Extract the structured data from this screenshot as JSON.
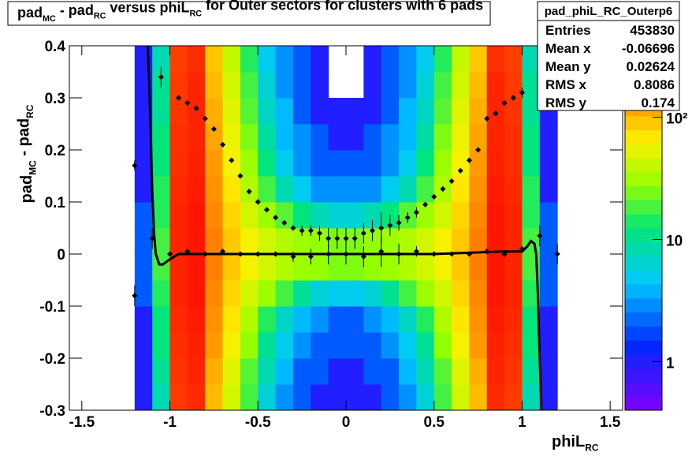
{
  "chart_data": {
    "type": "heatmap",
    "title": [
      "pad",
      "MC",
      " - pad",
      "RC",
      " versus phiL",
      "RC",
      " for Outer sectors for clusters with 6 pads"
    ],
    "xlabel": [
      "phiL",
      "RC"
    ],
    "ylabel": [
      "pad",
      "MC",
      " - pad",
      "RC"
    ],
    "xlim": [
      -1.5708,
      1.5708
    ],
    "ylim": [
      -0.3,
      0.4
    ],
    "xticks": [
      -1.5,
      -1,
      -0.5,
      0,
      0.5,
      1,
      1.5
    ],
    "yticks": [
      -0.3,
      -0.2,
      -0.1,
      0,
      0.1,
      0.2,
      0.3,
      0.4
    ],
    "zlim": [
      0.4,
      385
    ],
    "zticks": [
      1,
      10,
      {
        "value": 100,
        "label": "10²"
      }
    ],
    "log_z": true,
    "xbins": [
      -1.2,
      -1.1,
      -1.0,
      -0.9,
      -0.8,
      -0.7,
      -0.6,
      -0.5,
      -0.4,
      -0.3,
      -0.2,
      -0.1,
      0,
      0.1,
      0.2,
      0.3,
      0.4,
      0.5,
      0.6,
      0.7,
      0.8,
      0.9,
      1.0,
      1.1,
      1.2
    ],
    "ybins": [
      -0.3,
      -0.25,
      -0.2,
      -0.15,
      -0.1,
      -0.05,
      0,
      0.05,
      0.1,
      0.15,
      0.2,
      0.25,
      0.3,
      0.35,
      0.4
    ],
    "z": [
      [
        1,
        8,
        260,
        290,
        100,
        45,
        18,
        6,
        3,
        2,
        1,
        1,
        1,
        1,
        2,
        3,
        6,
        18,
        45,
        100,
        290,
        260,
        8,
        1
      ],
      [
        1,
        10,
        270,
        300,
        110,
        50,
        20,
        8,
        4,
        2,
        2,
        1,
        1,
        2,
        2,
        4,
        8,
        20,
        50,
        110,
        300,
        270,
        10,
        1
      ],
      [
        1,
        12,
        280,
        310,
        130,
        60,
        28,
        10,
        5,
        3,
        2,
        2,
        2,
        2,
        3,
        5,
        10,
        28,
        60,
        130,
        310,
        280,
        12,
        1
      ],
      [
        1,
        12,
        290,
        320,
        140,
        70,
        35,
        15,
        7,
        4,
        3,
        2,
        2,
        3,
        4,
        7,
        15,
        35,
        70,
        140,
        320,
        290,
        12,
        1
      ],
      [
        2,
        15,
        300,
        330,
        150,
        80,
        45,
        30,
        18,
        10,
        6,
        5,
        5,
        6,
        10,
        18,
        30,
        45,
        80,
        150,
        330,
        300,
        15,
        2
      ],
      [
        2,
        18,
        300,
        330,
        160,
        90,
        60,
        45,
        35,
        30,
        28,
        25,
        25,
        28,
        30,
        35,
        45,
        60,
        90,
        160,
        330,
        300,
        18,
        2
      ],
      [
        2,
        18,
        300,
        330,
        160,
        90,
        60,
        45,
        35,
        30,
        28,
        25,
        25,
        28,
        30,
        35,
        45,
        60,
        90,
        160,
        330,
        300,
        18,
        2
      ],
      [
        2,
        15,
        300,
        330,
        150,
        80,
        45,
        30,
        20,
        12,
        8,
        6,
        6,
        8,
        12,
        20,
        30,
        45,
        80,
        150,
        330,
        300,
        15,
        2
      ],
      [
        1,
        15,
        290,
        320,
        140,
        70,
        35,
        18,
        8,
        5,
        3,
        3,
        3,
        3,
        5,
        8,
        18,
        35,
        70,
        140,
        320,
        290,
        15,
        1
      ],
      [
        1,
        12,
        280,
        310,
        130,
        60,
        30,
        12,
        5,
        3,
        2,
        2,
        2,
        2,
        3,
        5,
        12,
        30,
        60,
        130,
        310,
        280,
        12,
        1
      ],
      [
        1,
        12,
        280,
        300,
        120,
        55,
        25,
        9,
        4,
        3,
        2,
        1,
        1,
        2,
        3,
        4,
        9,
        25,
        55,
        120,
        300,
        280,
        12,
        1
      ],
      [
        1,
        10,
        270,
        300,
        110,
        50,
        20,
        7,
        4,
        2,
        1,
        1,
        1,
        1,
        2,
        4,
        7,
        20,
        50,
        110,
        300,
        270,
        10,
        1
      ],
      [
        1,
        10,
        260,
        300,
        100,
        45,
        18,
        6,
        3,
        2,
        1,
        0,
        0,
        1,
        2,
        3,
        6,
        18,
        45,
        100,
        300,
        260,
        10,
        1
      ],
      [
        1,
        8,
        250,
        280,
        90,
        40,
        15,
        5,
        3,
        2,
        1,
        0,
        0,
        1,
        2,
        3,
        5,
        15,
        40,
        90,
        280,
        250,
        8,
        1
      ]
    ],
    "series": [
      {
        "kind": "points",
        "color": "#000000",
        "x": [
          -1.2,
          -1.05,
          -0.95,
          -0.9,
          -0.85,
          -0.8,
          -0.75,
          -0.7,
          -0.65,
          -0.6,
          -0.55,
          -0.5,
          -0.45,
          -0.4,
          -0.35,
          -0.3,
          -0.25,
          -0.2,
          -0.15,
          -0.1,
          -0.05,
          0,
          0.05,
          0.1,
          0.15,
          0.2,
          0.25,
          0.3,
          0.35,
          0.4,
          0.45,
          0.5,
          0.55,
          0.6,
          0.65,
          0.7,
          0.75,
          0.8,
          0.85,
          0.9,
          0.95,
          1.0
        ],
        "values": [
          0.17,
          0.34,
          0.3,
          0.29,
          0.28,
          0.26,
          0.24,
          0.21,
          0.18,
          0.15,
          0.12,
          0.1,
          0.085,
          0.07,
          0.06,
          0.05,
          0.045,
          0.045,
          0.04,
          0.03,
          0.03,
          0.03,
          0.03,
          0.04,
          0.045,
          0.05,
          0.055,
          0.06,
          0.07,
          0.08,
          0.095,
          0.11,
          0.125,
          0.14,
          0.16,
          0.18,
          0.2,
          0.26,
          0.27,
          0.29,
          0.3,
          0.31
        ],
        "errors": [
          0.01,
          0.02,
          0.005,
          0.005,
          0.005,
          0.005,
          0.005,
          0.005,
          0.005,
          0.005,
          0.005,
          0.005,
          0.005,
          0.005,
          0.005,
          0.005,
          0.01,
          0.01,
          0.015,
          0.02,
          0.02,
          0.02,
          0.02,
          0.02,
          0.02,
          0.03,
          0.02,
          0.015,
          0.01,
          0.01,
          0.005,
          0.005,
          0.005,
          0.005,
          0.005,
          0.005,
          0.005,
          0.005,
          0.005,
          0.005,
          0.005,
          0.01
        ]
      },
      {
        "kind": "points",
        "color": "#000000",
        "x": [
          -1.2,
          -1.1,
          -1.0,
          -0.9,
          -0.8,
          -0.7,
          -0.6,
          -0.5,
          -0.4,
          -0.3,
          -0.2,
          -0.1,
          0,
          0.1,
          0.2,
          0.3,
          0.4,
          0.5,
          0.6,
          0.7,
          0.8,
          0.9,
          1.0,
          1.1,
          1.2
        ],
        "values": [
          -0.08,
          0.03,
          0.0,
          0.005,
          0.0,
          0.005,
          0.0,
          0.0,
          0.0,
          -0.005,
          -0.005,
          0.0,
          0.0,
          -0.005,
          0.005,
          0.0,
          0.005,
          0.0,
          0.0,
          0.0,
          0.005,
          0.0,
          0.01,
          0.035,
          0.0
        ],
        "errors": [
          0.02,
          0.02,
          0.003,
          0.003,
          0.003,
          0.003,
          0.003,
          0.003,
          0.005,
          0.01,
          0.015,
          0.02,
          0.02,
          0.02,
          0.03,
          0.02,
          0.01,
          0.005,
          0.003,
          0.003,
          0.003,
          0.003,
          0.003,
          0.02,
          0.02
        ]
      },
      {
        "kind": "line",
        "color": "#000000",
        "x": [
          -1.125,
          -1.11,
          -1.1,
          -1.09,
          -1.08,
          -1.06,
          -1.04,
          -1.0,
          -0.95,
          -0.9,
          -0.5,
          0,
          0.5,
          0.9,
          0.95,
          1.0,
          1.03,
          1.05,
          1.07,
          1.08,
          1.09,
          1.1,
          1.11
        ],
        "values": [
          0.4,
          0.25,
          0.12,
          0.04,
          0.0,
          -0.02,
          -0.02,
          -0.01,
          0.0,
          0.0,
          0.0,
          0.0,
          0.0,
          0.005,
          0.005,
          0.005,
          0.015,
          0.025,
          0.02,
          0.0,
          -0.08,
          -0.2,
          -0.3
        ]
      }
    ],
    "stats": {
      "title": "pad_phiL_RC_Outerp6",
      "rows": [
        {
          "label": "Entries",
          "value": 453830
        },
        {
          "label": "Mean x",
          "value": -0.06696
        },
        {
          "label": "Mean y",
          "value": 0.02624
        },
        {
          "label": "RMS x",
          "value": 0.8086
        },
        {
          "label": "RMS y",
          "value": 0.174
        }
      ]
    }
  }
}
